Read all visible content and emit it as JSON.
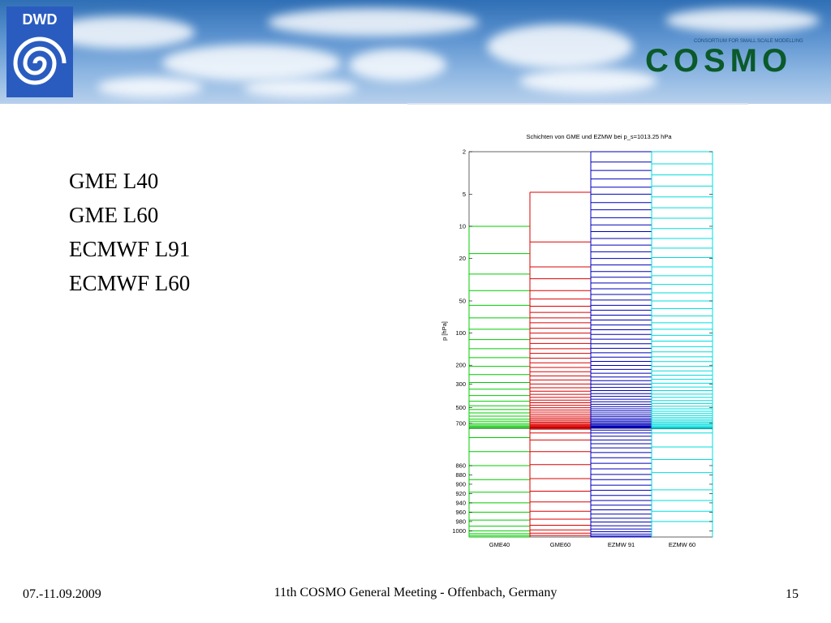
{
  "header": {
    "dwd_logo_text": "DWD",
    "cosmo_logo_text": "COSMO",
    "cosmo_tagline": "CONSORTIUM FOR SMALL SCALE MODELLING"
  },
  "bullets": [
    "GME L40",
    "GME L60",
    "ECMWF L91",
    "ECMWF L60"
  ],
  "footer": {
    "date": "07.-11.09.2009",
    "title": "11th COSMO General Meeting - Offenbach, Germany",
    "page": "15"
  },
  "chart_data": {
    "type": "layer-levels",
    "title": "Schichten von GME und EZMW bei p_s=1013.25 hPa",
    "ylabel": "p [hPa]",
    "y_axis_upper": {
      "scale": "log",
      "range": [
        2,
        780
      ],
      "ticks": [
        "2",
        "5",
        "10",
        "20",
        "50",
        "100",
        "200",
        "300",
        "500",
        "700"
      ]
    },
    "y_axis_lower": {
      "scale": "linear",
      "range": [
        780,
        1013.25
      ],
      "ticks": [
        "860",
        "880",
        "900",
        "920",
        "940",
        "960",
        "980",
        "1000"
      ]
    },
    "colors": {
      "GME40": "#00cc00",
      "GME60": "#dd0000",
      "EZMW 91": "#0000bb",
      "EZMW 60": "#00dddd"
    },
    "series": [
      {
        "name": "GME40",
        "levels": [
          10,
          18,
          28,
          40,
          55,
          72,
          92,
          115,
          140,
          170,
          205,
          245,
          290,
          335,
          385,
          435,
          480,
          520,
          560,
          600,
          640,
          670,
          700,
          725,
          745,
          765,
          780,
          800,
          830,
          860,
          890,
          917,
          940,
          960,
          977,
          990,
          1000,
          1006,
          1010,
          1013
        ]
      },
      {
        "name": "GME60",
        "levels": [
          4.8,
          14,
          24,
          31,
          40,
          48,
          56,
          64,
          72,
          80,
          90,
          100,
          112,
          125,
          140,
          155,
          172,
          190,
          210,
          230,
          252,
          275,
          300,
          325,
          350,
          375,
          400,
          425,
          450,
          475,
          500,
          525,
          550,
          575,
          600,
          622,
          644,
          665,
          685,
          703,
          720,
          735,
          748,
          760,
          770,
          778,
          782,
          790,
          805,
          830,
          858,
          888,
          915,
          938,
          958,
          975,
          988,
          998,
          1005,
          1010
        ]
      },
      {
        "name": "EZMW 91",
        "levels": [
          2,
          2.5,
          3,
          3.6,
          4.3,
          5,
          6,
          7,
          8.3,
          9.7,
          11.2,
          13,
          15,
          17.3,
          20,
          23,
          26.5,
          30,
          34,
          38.5,
          43.5,
          49,
          55,
          61,
          68,
          75.5,
          84,
          93,
          103,
          114,
          126,
          139,
          153,
          168,
          184,
          201,
          219,
          238,
          258,
          279,
          301,
          323,
          346,
          369,
          392,
          416,
          440,
          464,
          488,
          512,
          536,
          560,
          584,
          607,
          629,
          650,
          670,
          689,
          707,
          724,
          740,
          754,
          767,
          776,
          784,
          790,
          797,
          805,
          813,
          822,
          832,
          843,
          855,
          867,
          879,
          890,
          902,
          913,
          924,
          935,
          945,
          955,
          964,
          973,
          981,
          989,
          996,
          1002,
          1007,
          1011,
          1013
        ]
      },
      {
        "name": "EZMW 60",
        "levels": [
          2,
          2.6,
          3.3,
          4.2,
          5.3,
          6.7,
          8.4,
          10.5,
          13,
          16,
          19.6,
          24,
          29,
          35,
          42,
          50,
          59,
          69,
          80,
          92,
          105,
          119,
          134,
          150,
          167,
          185,
          205,
          226,
          248,
          271,
          295,
          320,
          346,
          373,
          400,
          428,
          456,
          484,
          512,
          540,
          567,
          593,
          618,
          642,
          665,
          686,
          706,
          724,
          741,
          756,
          770,
          781,
          790,
          820,
          847,
          875,
          912,
          935,
          958,
          980
        ]
      }
    ]
  }
}
